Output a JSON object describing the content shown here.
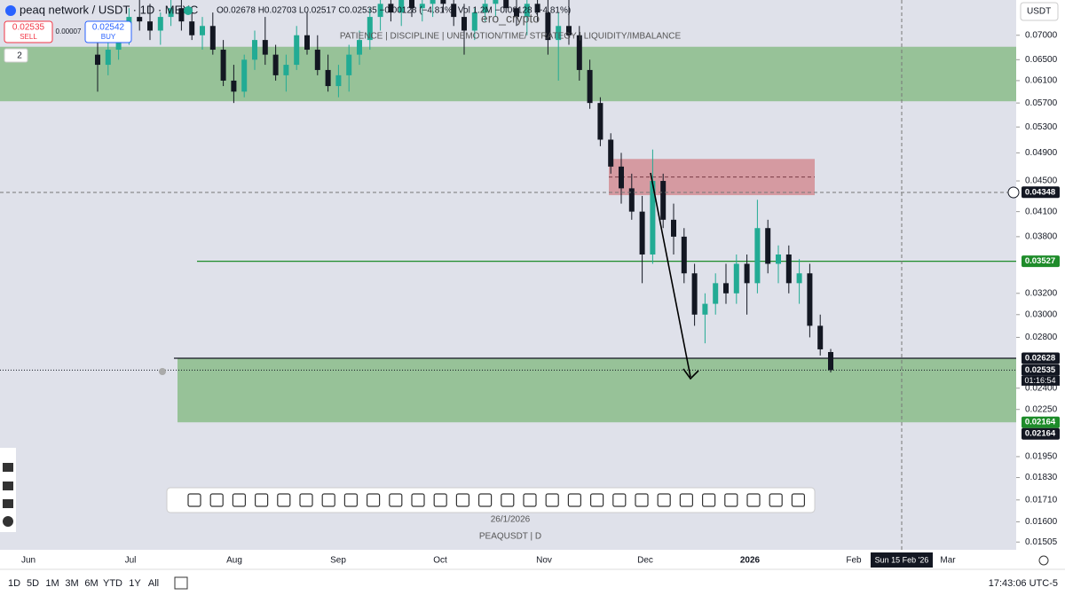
{
  "header": {
    "symbol": "peaq network / USDT · 1D · MEXC",
    "ohlc": "O0.02678 H0.02703 L0.02517 C0.02535 −0.00128 (−4.81%) Vol 1.2M −0.00128 (−4.81%)",
    "sell_price": "0.02535",
    "sell_label": "SELL",
    "spread": "0.00007",
    "buy_price": "0.02542",
    "buy_label": "BUY",
    "indicators": "2",
    "currency": "USDT"
  },
  "watermark": "ero_crypto",
  "motto": "PATIENCE  |  DISCIPLINE  |  UNEMOTION/TIME/ STRATEGY  |  LIQUIDITY/IMBALANCE",
  "chart_date": "26/1/2026",
  "chart_symbol": "PEAQUSDT | D",
  "chart_data": {
    "type": "candlestick",
    "log_scale": true,
    "up_color": "#22ab94",
    "down_color": "#131722",
    "ylim": [
      0.0147,
      0.0779
    ],
    "yticks": [
      {
        "value": 0.07,
        "label": "0.07000"
      },
      {
        "value": 0.065,
        "label": "0.06500"
      },
      {
        "value": 0.061,
        "label": "0.06100"
      },
      {
        "value": 0.057,
        "label": "0.05700"
      },
      {
        "value": 0.053,
        "label": "0.05300"
      },
      {
        "value": 0.049,
        "label": "0.04900"
      },
      {
        "value": 0.045,
        "label": "0.04500"
      },
      {
        "value": 0.041,
        "label": "0.04100"
      },
      {
        "value": 0.038,
        "label": "0.03800"
      },
      {
        "value": 0.032,
        "label": "0.03200"
      },
      {
        "value": 0.03,
        "label": "0.03000"
      },
      {
        "value": 0.028,
        "label": "0.02800"
      },
      {
        "value": 0.024,
        "label": "0.02400"
      },
      {
        "value": 0.0225,
        "label": "0.02250"
      },
      {
        "value": 0.0195,
        "label": "0.01950"
      },
      {
        "value": 0.0183,
        "label": "0.01830"
      },
      {
        "value": 0.0171,
        "label": "0.01710"
      },
      {
        "value": 0.016,
        "label": "0.01600"
      },
      {
        "value": 0.01505,
        "label": "0.01505"
      }
    ],
    "xlabels": [
      "Jun",
      "Jul",
      "Aug",
      "Sep",
      "Oct",
      "Nov",
      "Dec",
      "2026",
      "Feb",
      "Mar"
    ],
    "crosshair_date": "Sun 15 Feb '26",
    "candles": [
      [
        0.066,
        0.07,
        0.059,
        0.064
      ],
      [
        0.064,
        0.069,
        0.062,
        0.067
      ],
      [
        0.067,
        0.072,
        0.065,
        0.07
      ],
      [
        0.07,
        0.076,
        0.068,
        0.074
      ],
      [
        0.074,
        0.079,
        0.071,
        0.073
      ],
      [
        0.073,
        0.077,
        0.069,
        0.071
      ],
      [
        0.071,
        0.075,
        0.068,
        0.074
      ],
      [
        0.074,
        0.079,
        0.072,
        0.076
      ],
      [
        0.076,
        0.079,
        0.071,
        0.073
      ],
      [
        0.073,
        0.076,
        0.069,
        0.07
      ],
      [
        0.07,
        0.074,
        0.067,
        0.072
      ],
      [
        0.072,
        0.075,
        0.066,
        0.067
      ],
      [
        0.067,
        0.069,
        0.06,
        0.061
      ],
      [
        0.061,
        0.064,
        0.057,
        0.059
      ],
      [
        0.059,
        0.066,
        0.058,
        0.065
      ],
      [
        0.065,
        0.071,
        0.063,
        0.069
      ],
      [
        0.069,
        0.074,
        0.064,
        0.066
      ],
      [
        0.066,
        0.068,
        0.061,
        0.062
      ],
      [
        0.062,
        0.066,
        0.059,
        0.064
      ],
      [
        0.064,
        0.072,
        0.063,
        0.07
      ],
      [
        0.07,
        0.075,
        0.066,
        0.067
      ],
      [
        0.067,
        0.07,
        0.062,
        0.063
      ],
      [
        0.063,
        0.066,
        0.059,
        0.06
      ],
      [
        0.06,
        0.064,
        0.058,
        0.062
      ],
      [
        0.062,
        0.068,
        0.059,
        0.066
      ],
      [
        0.066,
        0.071,
        0.064,
        0.069
      ],
      [
        0.069,
        0.076,
        0.067,
        0.074
      ],
      [
        0.074,
        0.079,
        0.071,
        0.077
      ],
      [
        0.077,
        0.079,
        0.073,
        0.075
      ],
      [
        0.075,
        0.079,
        0.072,
        0.078
      ],
      [
        0.078,
        0.079,
        0.074,
        0.076
      ],
      [
        0.076,
        0.079,
        0.073,
        0.077
      ],
      [
        0.077,
        0.079,
        0.074,
        0.078
      ],
      [
        0.078,
        0.079,
        0.075,
        0.077
      ],
      [
        0.077,
        0.079,
        0.072,
        0.074
      ],
      [
        0.074,
        0.077,
        0.066,
        0.071
      ],
      [
        0.071,
        0.076,
        0.069,
        0.075
      ],
      [
        0.075,
        0.079,
        0.073,
        0.077
      ],
      [
        0.077,
        0.079,
        0.074,
        0.078
      ],
      [
        0.078,
        0.079,
        0.075,
        0.076
      ],
      [
        0.076,
        0.079,
        0.072,
        0.074
      ],
      [
        0.074,
        0.078,
        0.07,
        0.077
      ],
      [
        0.077,
        0.079,
        0.073,
        0.075
      ],
      [
        0.075,
        0.078,
        0.066,
        0.069
      ],
      [
        0.069,
        0.075,
        0.061,
        0.072
      ],
      [
        0.072,
        0.079,
        0.068,
        0.07
      ],
      [
        0.07,
        0.072,
        0.061,
        0.063
      ],
      [
        0.063,
        0.065,
        0.056,
        0.057
      ],
      [
        0.057,
        0.058,
        0.05,
        0.051
      ],
      [
        0.051,
        0.052,
        0.046,
        0.047
      ],
      [
        0.047,
        0.049,
        0.042,
        0.044
      ],
      [
        0.044,
        0.046,
        0.04,
        0.041
      ],
      [
        0.041,
        0.043,
        0.033,
        0.036
      ],
      [
        0.036,
        0.0495,
        0.035,
        0.045
      ],
      [
        0.045,
        0.046,
        0.039,
        0.04
      ],
      [
        0.04,
        0.042,
        0.036,
        0.038
      ],
      [
        0.038,
        0.039,
        0.033,
        0.034
      ],
      [
        0.034,
        0.035,
        0.029,
        0.03
      ],
      [
        0.03,
        0.032,
        0.0275,
        0.031
      ],
      [
        0.031,
        0.034,
        0.03,
        0.033
      ],
      [
        0.033,
        0.035,
        0.031,
        0.032
      ],
      [
        0.032,
        0.036,
        0.031,
        0.035
      ],
      [
        0.035,
        0.036,
        0.03,
        0.033
      ],
      [
        0.033,
        0.0425,
        0.032,
        0.039
      ],
      [
        0.039,
        0.04,
        0.034,
        0.035
      ],
      [
        0.035,
        0.037,
        0.033,
        0.036
      ],
      [
        0.036,
        0.037,
        0.032,
        0.033
      ],
      [
        0.033,
        0.0355,
        0.031,
        0.034
      ],
      [
        0.034,
        0.035,
        0.028,
        0.029
      ],
      [
        0.029,
        0.03,
        0.0265,
        0.027
      ],
      [
        0.02678,
        0.02703,
        0.02517,
        0.02535
      ]
    ],
    "zones": [
      {
        "low": 0.0573,
        "high": 0.0676,
        "color": "#8fbf8f"
      },
      {
        "low": 0.0431,
        "high": 0.0481,
        "color": "#d49299"
      },
      {
        "low": 0.02164,
        "high": 0.02628,
        "color": "#8fbf8f"
      }
    ],
    "levels": [
      {
        "value": 0.03527,
        "color": "#1e8c2a"
      },
      {
        "value": 0.02628,
        "color": "#131722"
      }
    ],
    "price_badges": [
      {
        "value": 0.04348,
        "label": "0.04348",
        "bg": "#131722"
      },
      {
        "value": 0.03527,
        "label": "0.03527",
        "bg": "#1e8c2a"
      },
      {
        "value": 0.02628,
        "label": "0.02628",
        "bg": "#131722"
      },
      {
        "value": 0.02535,
        "label": "0.02535",
        "bg": "#131722"
      },
      {
        "value": 0.02164,
        "label": "0.02164",
        "bg": "#1e8c2a"
      },
      {
        "value": 0.02164,
        "label": "0.02164",
        "bg": "#131722"
      }
    ],
    "countdown": "01:16:54"
  },
  "ranges": [
    "1D",
    "5D",
    "1M",
    "3M",
    "6M",
    "YTD",
    "1Y",
    "All"
  ],
  "clock": "17:43:06 UTC-5"
}
